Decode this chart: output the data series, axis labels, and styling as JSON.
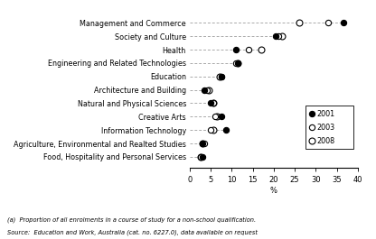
{
  "categories": [
    "Management and Commerce",
    "Society and Culture",
    "Health",
    "Engineering and Related Technologies",
    "Education",
    "Architecture and Building",
    "Natural and Physical Sciences",
    "Creative Arts",
    "Information Technology",
    "Agriculture, Environmental and Realted Studies",
    "Food, Hospitality and Personal Services"
  ],
  "values_2001": [
    36.5,
    20.5,
    11.0,
    11.5,
    7.5,
    3.5,
    5.0,
    7.5,
    8.5,
    3.0,
    3.0
  ],
  "values_2003": [
    33.0,
    21.0,
    14.0,
    11.0,
    7.5,
    4.0,
    5.5,
    6.0,
    5.0,
    3.5,
    2.5
  ],
  "values_2008": [
    26.0,
    22.0,
    17.0,
    11.5,
    7.0,
    4.5,
    5.5,
    6.5,
    5.5,
    3.0,
    2.5
  ],
  "xlabel": "%",
  "xlim": [
    0,
    40
  ],
  "xticks": [
    0,
    5,
    10,
    15,
    20,
    25,
    30,
    35,
    40
  ],
  "legend_labels": [
    "2001",
    "2003",
    "2008"
  ],
  "footnote1": "(a)  Proportion of all enrolments in a course of study for a non-school qualification.",
  "footnote2": "Source:  Education and Work, Australia (cat. no. 6227.0), data available on request",
  "marker_size": 4.5,
  "dash_color": "#aaaaaa",
  "figure_bg": "#ffffff",
  "axes_bg": "#ffffff",
  "label_fontsize": 5.8,
  "tick_fontsize": 6.0,
  "legend_fontsize": 5.8,
  "footnote_fontsize": 4.8
}
